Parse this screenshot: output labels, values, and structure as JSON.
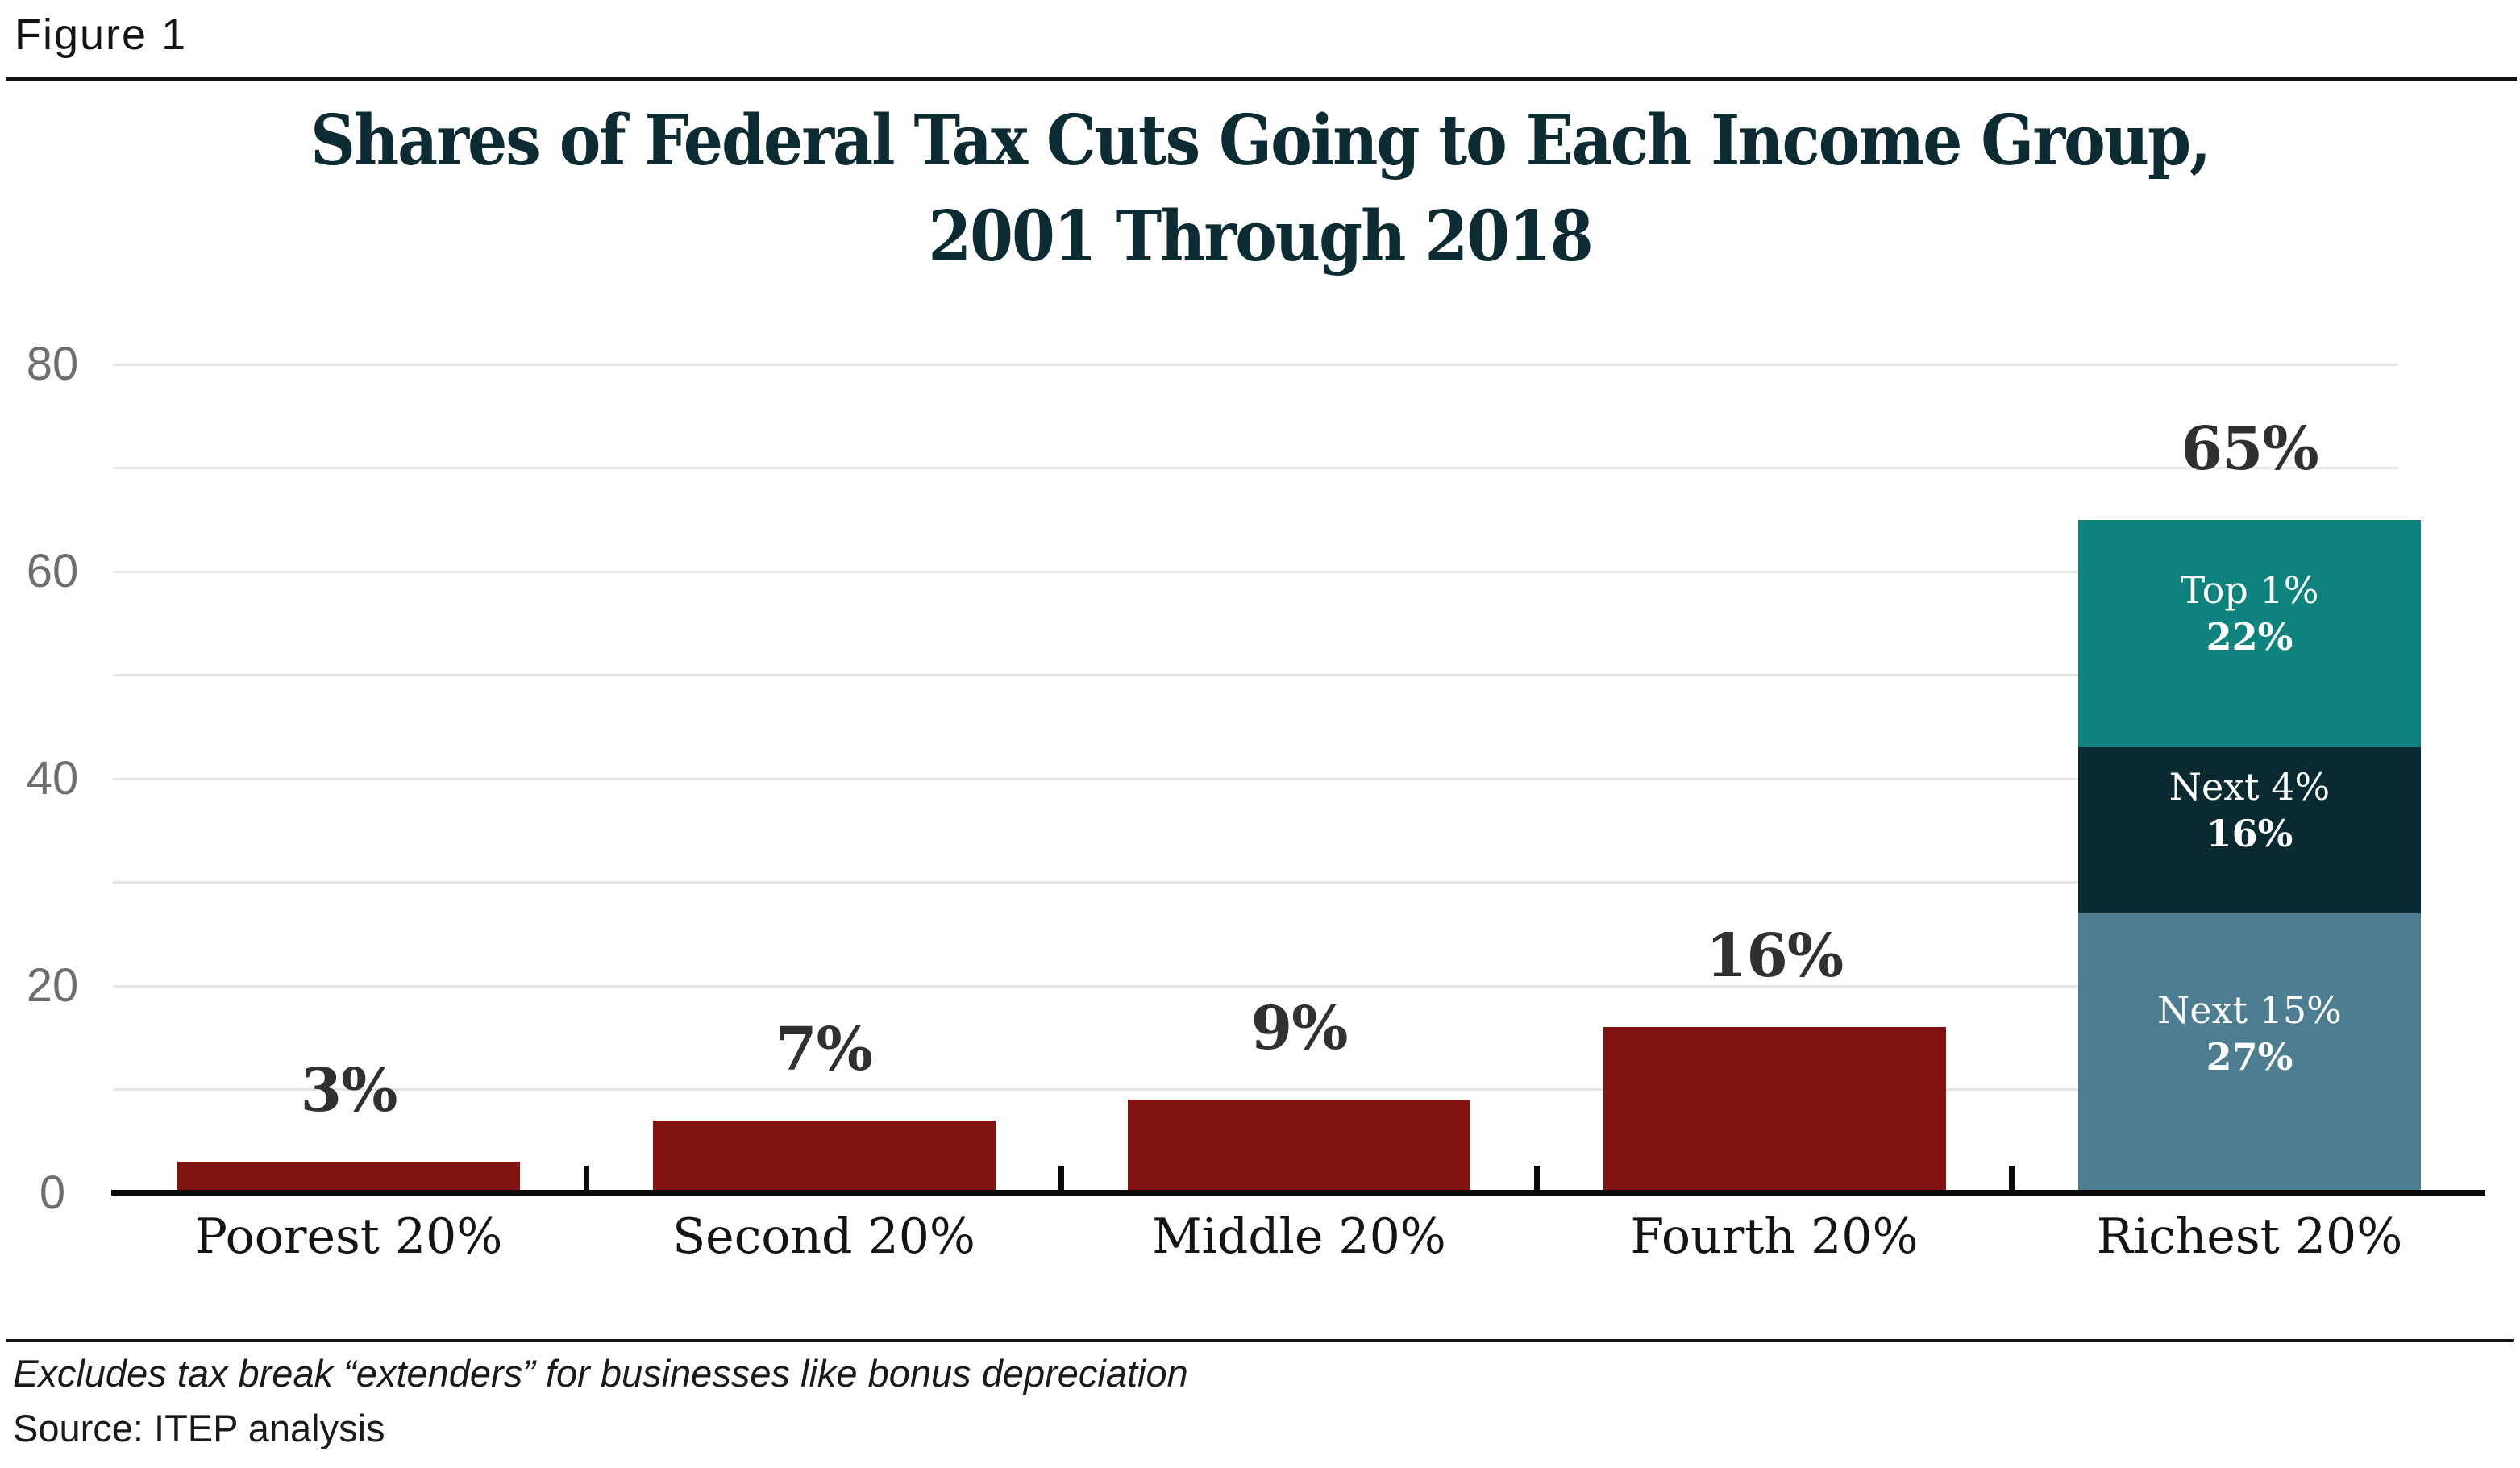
{
  "figure_label": "Figure 1",
  "title": {
    "line1": "Shares of Federal Tax Cuts Going to Each Income Group,",
    "line2": "2001 Through 2018"
  },
  "footnote": "Excludes tax break “extenders” for businesses like bonus depreciation",
  "source": "Source: ITEP analysis",
  "colors": {
    "title": "#0d2b33",
    "bar_red": "#831212",
    "stack_steel_blue": "#4d7d90",
    "stack_dark_teal": "#092a31",
    "stack_teal": "#0e837d",
    "value_label": "#303030",
    "axis": "#0a0a0a",
    "gridline": "#e5e5e5",
    "ytick_text": "#6e6e6e",
    "segment_text": "#ffffff"
  },
  "chart_data": {
    "type": "bar",
    "title": "Shares of Federal Tax Cuts Going to Each Income Group, 2001 Through 2018",
    "categories": [
      "Poorest 20%",
      "Second 20%",
      "Middle 20%",
      "Fourth 20%",
      "Richest 20%"
    ],
    "totals": [
      3,
      7,
      9,
      16,
      65
    ],
    "total_labels": [
      "3%",
      "7%",
      "9%",
      "16%",
      "65%"
    ],
    "stacks": {
      "Richest 20%": [
        {
          "label": "Next 15%",
          "value": 27,
          "value_label": "27%",
          "color": "#4d7d90"
        },
        {
          "label": "Next 4%",
          "value": 16,
          "value_label": "16%",
          "color": "#092a31"
        },
        {
          "label": "Top 1%",
          "value": 22,
          "value_label": "22%",
          "color": "#0e837d"
        }
      ]
    },
    "bar_color": "#831212",
    "xlabel": "",
    "ylabel": "",
    "ylim": [
      0,
      85
    ],
    "yticks": [
      0,
      20,
      40,
      60,
      80
    ],
    "grid_step": 10,
    "grid": "on",
    "legend": "none"
  }
}
